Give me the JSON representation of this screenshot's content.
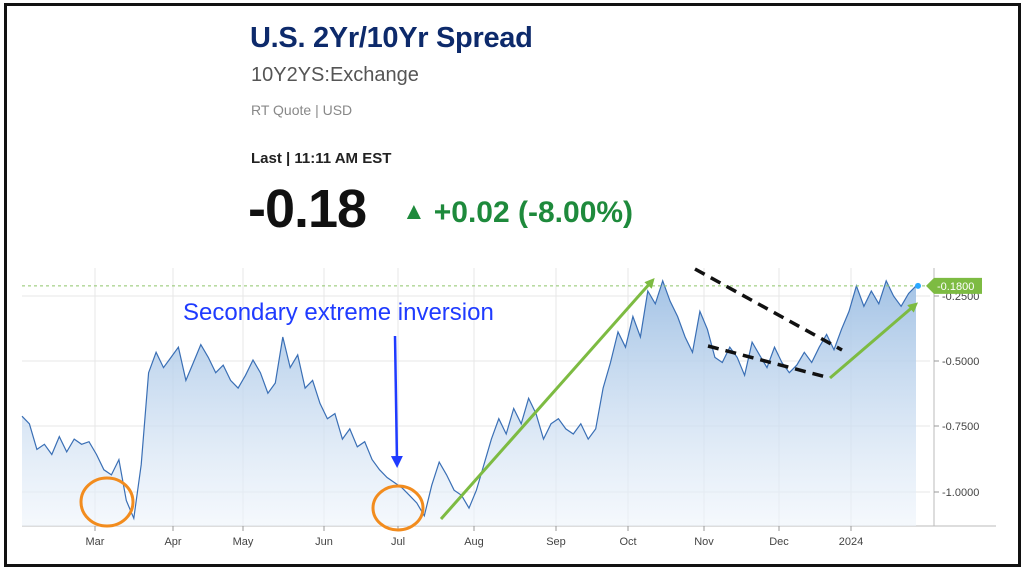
{
  "header": {
    "title": "U.S. 2Yr/10Yr Spread",
    "symbol": "10Y2YS:Exchange",
    "quote_info": "RT Quote | USD",
    "last_label": "Last | 11:11 AM EST",
    "last_value": "-0.18",
    "change": "+0.02 (-8.00%)",
    "change_icon": "up-triangle-icon",
    "change_color": "#1e8a3c"
  },
  "chart_data": {
    "type": "area",
    "x_tick_labels": [
      "Mar",
      "Apr",
      "May",
      "Jun",
      "Jul",
      "Aug",
      "Sep",
      "Oct",
      "Nov",
      "Dec",
      "2024"
    ],
    "y_tick_labels": [
      "-0.2500",
      "-0.5000",
      "-0.7500",
      "-1.0000"
    ],
    "ylim": [
      -1.12,
      -0.11
    ],
    "current_value_label": "-0.1800",
    "current_value": -0.18,
    "annotation": "Secondary extreme inversion",
    "colors": {
      "line": "#3a6fb5",
      "fill_top": "#9fc0e4",
      "fill_bottom": "#eef4fb",
      "arrows": "#7dbb42",
      "circles": "#f28c1e",
      "annotation": "#1f3bff",
      "badge": "#7dbb42"
    },
    "series": [
      {
        "x_day": [
          0,
          3,
          6,
          9,
          12,
          15,
          18,
          21,
          24,
          27,
          30,
          33,
          36,
          39,
          42,
          45,
          48,
          51,
          54,
          57,
          60,
          63,
          66,
          69,
          72,
          75,
          78,
          81,
          84,
          87,
          90,
          93,
          96,
          99,
          102,
          105,
          108,
          111,
          114,
          117,
          120,
          123,
          126,
          129,
          132,
          135,
          138,
          141,
          144,
          147,
          150,
          153,
          156,
          159,
          162,
          165,
          168,
          171,
          174,
          177,
          180,
          183,
          186,
          189,
          192,
          195,
          198,
          201,
          204,
          207,
          210,
          213,
          216,
          219,
          222,
          225,
          228,
          231,
          234,
          237,
          240,
          243,
          246,
          249,
          252,
          255,
          258,
          261,
          264,
          267,
          270,
          273,
          276,
          279,
          282,
          285,
          288,
          291,
          294,
          297,
          300,
          303,
          306,
          309,
          312,
          315,
          318,
          321,
          324,
          327,
          330,
          333,
          336,
          339,
          342,
          345,
          348,
          351,
          354,
          357,
          360
        ],
        "values": [
          -0.69,
          -0.72,
          -0.82,
          -0.8,
          -0.84,
          -0.77,
          -0.83,
          -0.78,
          -0.8,
          -0.79,
          -0.84,
          -0.9,
          -0.92,
          -0.86,
          -1.02,
          -1.09,
          -0.88,
          -0.52,
          -0.44,
          -0.5,
          -0.46,
          -0.42,
          -0.55,
          -0.48,
          -0.41,
          -0.46,
          -0.52,
          -0.49,
          -0.55,
          -0.58,
          -0.53,
          -0.47,
          -0.52,
          -0.6,
          -0.56,
          -0.38,
          -0.5,
          -0.45,
          -0.58,
          -0.55,
          -0.64,
          -0.7,
          -0.68,
          -0.78,
          -0.74,
          -0.81,
          -0.79,
          -0.86,
          -0.9,
          -0.93,
          -0.95,
          -0.97,
          -1.0,
          -1.03,
          -1.08,
          -0.96,
          -0.87,
          -0.92,
          -0.98,
          -1.0,
          -1.05,
          -0.98,
          -0.88,
          -0.78,
          -0.7,
          -0.76,
          -0.66,
          -0.72,
          -0.62,
          -0.68,
          -0.78,
          -0.72,
          -0.7,
          -0.74,
          -0.76,
          -0.72,
          -0.78,
          -0.74,
          -0.58,
          -0.48,
          -0.36,
          -0.42,
          -0.3,
          -0.38,
          -0.2,
          -0.25,
          -0.16,
          -0.24,
          -0.3,
          -0.38,
          -0.44,
          -0.28,
          -0.35,
          -0.46,
          -0.48,
          -0.42,
          -0.46,
          -0.53,
          -0.4,
          -0.45,
          -0.5,
          -0.42,
          -0.48,
          -0.52,
          -0.49,
          -0.44,
          -0.48,
          -0.42,
          -0.37,
          -0.43,
          -0.35,
          -0.28,
          -0.18,
          -0.26,
          -0.2,
          -0.25,
          -0.16,
          -0.22,
          -0.26,
          -0.21,
          -0.18
        ]
      }
    ]
  }
}
